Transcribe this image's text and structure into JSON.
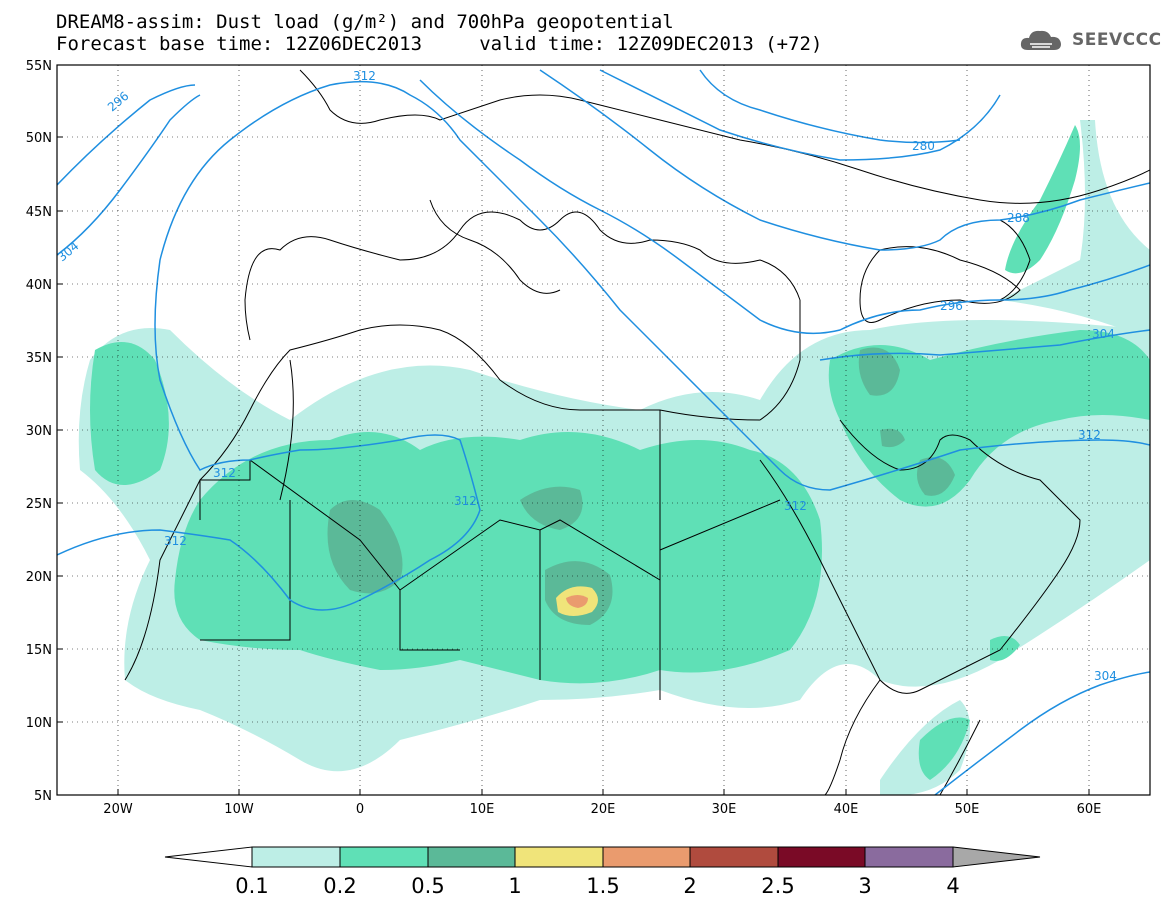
{
  "header": {
    "title_line1": "DREAM8-assim: Dust load (g/m²) and 700hPa geopotential",
    "title_line2": "Forecast base time: 12Z06DEC2013     valid time: 12Z09DEC2013 (+72)",
    "logo_text": "SEEVCCC"
  },
  "map": {
    "lon_range": [
      -25,
      65
    ],
    "lat_range": [
      5,
      55
    ],
    "lon_ticks": [
      "20W",
      "10W",
      "0",
      "10E",
      "20E",
      "30E",
      "40E",
      "50E",
      "60E"
    ],
    "lat_ticks": [
      "5N",
      "10N",
      "15N",
      "20N",
      "25N",
      "30N",
      "35N",
      "40N",
      "45N",
      "50N",
      "55N"
    ],
    "contour_labels": [
      "312",
      "296",
      "304",
      "280",
      "288",
      "296",
      "304",
      "312",
      "312",
      "312",
      "312",
      "312"
    ]
  },
  "colorbar": {
    "levels": [
      "0.1",
      "0.2",
      "0.5",
      "1",
      "1.5",
      "2",
      "2.5",
      "3",
      "4"
    ],
    "colors": [
      "#ffffff",
      "#bdeee6",
      "#5fe0b6",
      "#5bb998",
      "#f0e47a",
      "#ea9b6e",
      "#b04b3e",
      "#7a0a26",
      "#8a6b9e",
      "#a8a8a8"
    ]
  }
}
